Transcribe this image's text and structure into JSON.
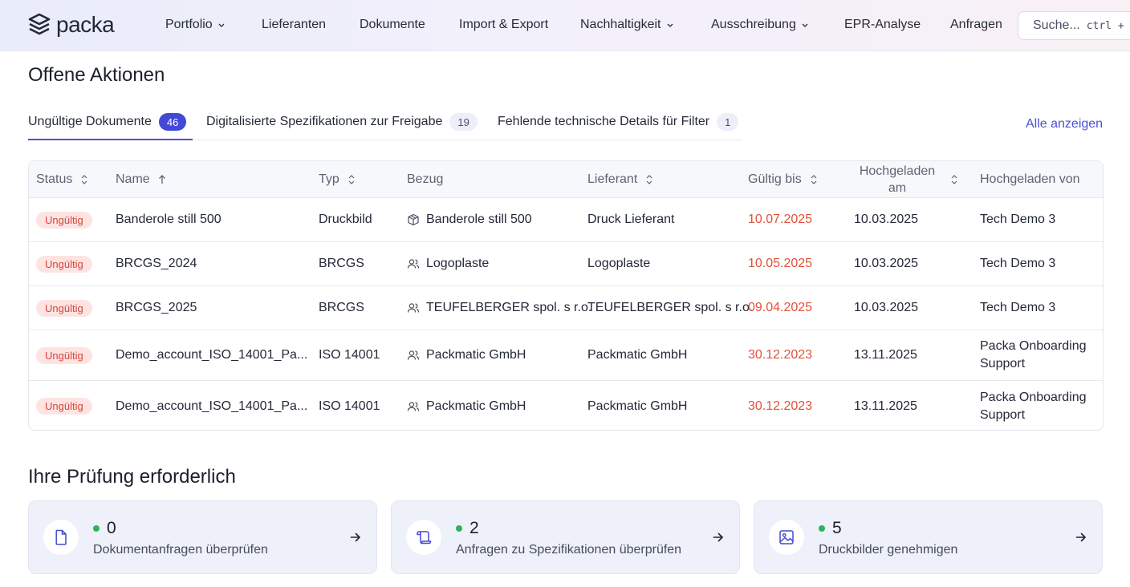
{
  "brand": {
    "name": "packa"
  },
  "nav": {
    "items": [
      {
        "label": "Portfolio",
        "dropdown": true
      },
      {
        "label": "Lieferanten",
        "dropdown": false
      },
      {
        "label": "Dokumente",
        "dropdown": false
      },
      {
        "label": "Import & Export",
        "dropdown": false
      },
      {
        "label": "Nachhaltigkeit",
        "dropdown": true
      },
      {
        "label": "Ausschreibung",
        "dropdown": true
      },
      {
        "label": "EPR-Analyse",
        "dropdown": false
      },
      {
        "label": "Anfragen",
        "dropdown": false
      }
    ],
    "search_placeholder": "Suche...",
    "search_shortcut": "ctrl + K"
  },
  "actions": {
    "title": "Offene Aktionen",
    "tabs": [
      {
        "label": "Ungültige Dokumente",
        "count": "46",
        "active": true
      },
      {
        "label": "Digitalisierte Spezifikationen zur Freigabe",
        "count": "19",
        "active": false
      },
      {
        "label": "Fehlende technische Details für Filter",
        "count": "1",
        "active": false
      }
    ],
    "show_all": "Alle anzeigen",
    "columns": {
      "status": "Status",
      "name": "Name",
      "type": "Typ",
      "ref": "Bezug",
      "supplier": "Lieferant",
      "valid_until": "Gültig bis",
      "uploaded_at": "Hochgeladen am",
      "uploaded_by": "Hochgeladen von"
    },
    "rows": [
      {
        "status": "Ungültig",
        "name": "Banderole still 500",
        "type": "Druckbild",
        "ref": "Banderole still 500",
        "ref_icon": "package-icon",
        "supplier": "Druck Lieferant",
        "valid_until": "10.07.2025",
        "uploaded_at": "10.03.2025",
        "uploaded_by": "Tech Demo 3"
      },
      {
        "status": "Ungültig",
        "name": "BRCGS_2024",
        "type": "BRCGS",
        "ref": "Logoplaste",
        "ref_icon": "users-icon",
        "supplier": "Logoplaste",
        "valid_until": "10.05.2025",
        "uploaded_at": "10.03.2025",
        "uploaded_by": "Tech Demo 3"
      },
      {
        "status": "Ungültig",
        "name": "BRCGS_2025",
        "type": "BRCGS",
        "ref": "TEUFELBERGER spol. s r.o.",
        "ref_icon": "users-icon",
        "supplier": "TEUFELBERGER spol. s r.o.",
        "valid_until": "09.04.2025",
        "uploaded_at": "10.03.2025",
        "uploaded_by": "Tech Demo 3"
      },
      {
        "status": "Ungültig",
        "name": "Demo_account_ISO_14001_Pa...",
        "type": "ISO 14001",
        "ref": "Packmatic GmbH",
        "ref_icon": "users-icon",
        "supplier": "Packmatic GmbH",
        "valid_until": "30.12.2023",
        "uploaded_at": "13.11.2025",
        "uploaded_by": "Packa Onboarding Support"
      },
      {
        "status": "Ungültig",
        "name": "Demo_account_ISO_14001_Pa...",
        "type": "ISO 14001",
        "ref": "Packmatic GmbH",
        "ref_icon": "users-icon",
        "supplier": "Packmatic GmbH",
        "valid_until": "30.12.2023",
        "uploaded_at": "13.11.2025",
        "uploaded_by": "Packa Onboarding Support"
      }
    ]
  },
  "review": {
    "title": "Ihre Prüfung erforderlich",
    "cards": [
      {
        "count": "0",
        "label": "Dokumentanfragen überprüfen",
        "icon": "document-icon"
      },
      {
        "count": "2",
        "label": "Anfragen zu Spezifikationen überprüfen",
        "icon": "scroll-icon"
      },
      {
        "count": "5",
        "label": "Druckbilder genehmigen",
        "icon": "image-icon"
      }
    ]
  },
  "colors": {
    "accent": "#4348d6",
    "invalid": "#d5463a",
    "expired_date": "#e0523a",
    "ok_dot": "#2fb35a"
  }
}
